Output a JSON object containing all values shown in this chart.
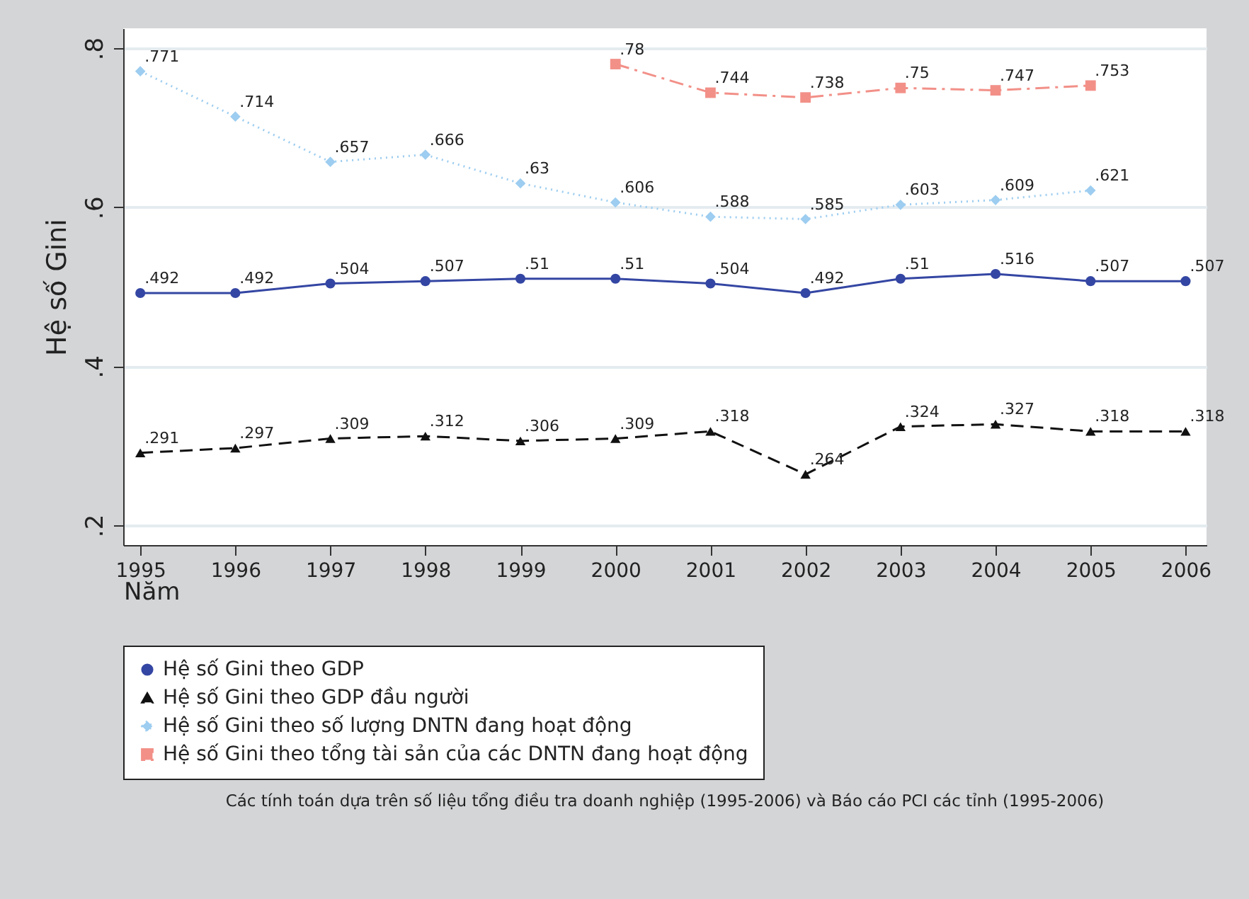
{
  "chart_data": {
    "type": "line",
    "xlabel": "Năm",
    "ylabel": "Hệ số Gini",
    "x": [
      1995,
      1996,
      1997,
      1998,
      1999,
      2000,
      2001,
      2002,
      2003,
      2004,
      2005,
      2006
    ],
    "xlim": [
      1994.82,
      2006.22
    ],
    "xticks": [
      1995,
      1996,
      1997,
      1998,
      1999,
      2000,
      2001,
      2002,
      2003,
      2004,
      2005,
      2006
    ],
    "ylim": [
      0.175,
      0.825
    ],
    "yticks": [
      {
        "value": 0.2,
        "label": ".2"
      },
      {
        "value": 0.4,
        "label": ".4"
      },
      {
        "value": 0.6,
        "label": ".6"
      },
      {
        "value": 0.8,
        "label": ".8"
      }
    ],
    "grid": "y",
    "legend": "bottom",
    "series": [
      {
        "name": "Hệ số Gini theo GDP",
        "color": "#3446a3",
        "marker": "circle",
        "line_style": "solid",
        "values": [
          0.492,
          0.492,
          0.504,
          0.507,
          0.51,
          0.51,
          0.504,
          0.492,
          0.51,
          0.516,
          0.507,
          0.507
        ],
        "value_labels": [
          ".492",
          ".492",
          ".504",
          ".507",
          ".51",
          ".51",
          ".504",
          ".492",
          ".51",
          ".516",
          ".507",
          ".507"
        ]
      },
      {
        "name": "Hệ số Gini theo GDP đầu người",
        "color": "#111111",
        "marker": "triangle",
        "line_style": "dashed",
        "values": [
          0.291,
          0.297,
          0.309,
          0.312,
          0.306,
          0.309,
          0.318,
          0.264,
          0.324,
          0.327,
          0.318,
          0.318
        ],
        "value_labels": [
          ".291",
          ".297",
          ".309",
          ".312",
          ".306",
          ".309",
          ".318",
          ".264",
          ".324",
          ".327",
          ".318",
          ".318"
        ]
      },
      {
        "name": "Hệ số Gini theo số lượng DNTN đang hoạt động",
        "color": "#9dcdf0",
        "marker": "diamond",
        "line_style": "dotted",
        "values": [
          0.771,
          0.714,
          0.657,
          0.666,
          0.63,
          0.606,
          0.588,
          0.585,
          0.603,
          0.609,
          0.621,
          null
        ],
        "value_labels": [
          ".771",
          ".714",
          ".657",
          ".666",
          ".63",
          ".606",
          ".588",
          ".585",
          ".603",
          ".609",
          ".621",
          null
        ]
      },
      {
        "name": "Hệ số Gini theo tổng tài sản của các DNTN đang hoạt động",
        "color": "#f29088",
        "marker": "square",
        "line_style": "dashdot",
        "values": [
          null,
          null,
          null,
          null,
          null,
          0.78,
          0.744,
          0.738,
          0.75,
          0.747,
          0.753,
          null
        ],
        "value_labels": [
          null,
          null,
          null,
          null,
          null,
          ".78",
          ".744",
          ".738",
          ".75",
          ".747",
          ".753",
          null
        ]
      }
    ],
    "annotations": [
      "Các tính toán dựa trên số liệu tổng điều tra doanh nghiệp (1995-2006) và Báo cáo PCI các tỉnh (1995-2006)"
    ]
  }
}
